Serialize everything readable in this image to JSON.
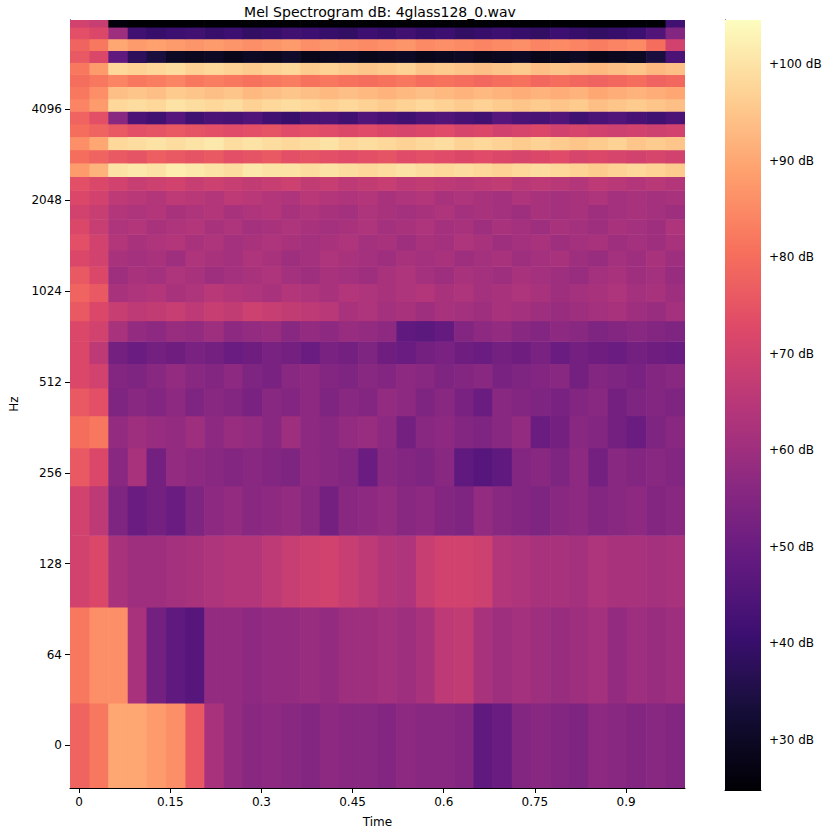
{
  "chart_data": {
    "type": "heatmap",
    "title": "Mel Spectrogram dB: 4glass128_0.wav",
    "x_label": "Time",
    "y_label": "Hz",
    "log": "y",
    "xlim": [
      -0.015,
      0.997
    ],
    "xticks": [
      0,
      0.15,
      0.3,
      0.45,
      0.6,
      0.75,
      0.9
    ],
    "ylim": [
      -30,
      8100
    ],
    "yticks": [
      0,
      64,
      128,
      256,
      512,
      1024,
      2048,
      4096
    ],
    "x_edges": [
      -0.015,
      0.017,
      0.048,
      0.08,
      0.111,
      0.143,
      0.175,
      0.206,
      0.238,
      0.269,
      0.301,
      0.333,
      0.364,
      0.396,
      0.427,
      0.459,
      0.491,
      0.522,
      0.554,
      0.585,
      0.617,
      0.649,
      0.68,
      0.712,
      0.743,
      0.775,
      0.807,
      0.838,
      0.87,
      0.901,
      0.933,
      0.965,
      0.997
    ],
    "y_edges": [
      -30,
      30,
      92,
      159,
      232,
      310,
      396,
      489,
      590,
      699,
      818,
      946,
      1086,
      1238,
      1402,
      1580,
      1773,
      1983,
      2210,
      2457,
      2725,
      3015,
      3330,
      3671,
      4042,
      4444,
      4880,
      5353,
      5866,
      6423,
      7026,
      7681,
      8100
    ],
    "cells": [
      [
        78,
        82,
        90,
        90,
        88,
        86,
        76,
        62,
        58,
        56,
        57,
        56,
        55,
        57,
        56,
        56,
        55,
        57,
        56,
        56,
        55,
        48,
        50,
        55,
        56,
        55,
        54,
        57,
        56,
        55,
        56,
        55
      ],
      [
        82,
        86,
        86,
        62,
        52,
        48,
        46,
        58,
        58,
        57,
        58,
        58,
        59,
        58,
        60,
        60,
        61,
        60,
        62,
        66,
        67,
        62,
        60,
        61,
        60,
        59,
        60,
        61,
        58,
        60,
        59,
        60
      ],
      [
        70,
        72,
        62,
        60,
        60,
        61,
        62,
        63,
        64,
        64,
        66,
        68,
        69,
        70,
        68,
        66,
        64,
        63,
        68,
        70,
        70,
        69,
        64,
        63,
        62,
        62,
        61,
        63,
        62,
        62,
        61,
        62
      ],
      [
        70,
        66,
        54,
        50,
        52,
        50,
        54,
        57,
        58,
        56,
        57,
        58,
        56,
        52,
        56,
        57,
        58,
        56,
        57,
        55,
        54,
        58,
        56,
        55,
        54,
        56,
        57,
        55,
        56,
        57,
        55,
        56
      ],
      [
        76,
        72,
        56,
        62,
        52,
        58,
        57,
        56,
        55,
        56,
        55,
        54,
        57,
        56,
        55,
        50,
        56,
        55,
        54,
        56,
        48,
        46,
        48,
        55,
        56,
        54,
        57,
        52,
        56,
        55,
        56,
        55
      ],
      [
        80,
        82,
        58,
        60,
        59,
        58,
        60,
        57,
        59,
        58,
        56,
        60,
        57,
        56,
        58,
        59,
        57,
        52,
        56,
        57,
        55,
        54,
        56,
        58,
        50,
        52,
        56,
        55,
        52,
        50,
        54,
        56
      ],
      [
        76,
        74,
        54,
        56,
        55,
        57,
        54,
        56,
        55,
        53,
        56,
        55,
        57,
        54,
        56,
        55,
        58,
        57,
        54,
        56,
        53,
        50,
        56,
        55,
        54,
        53,
        55,
        56,
        52,
        54,
        55,
        54
      ],
      [
        72,
        70,
        55,
        54,
        56,
        58,
        56,
        55,
        57,
        54,
        53,
        56,
        57,
        55,
        54,
        56,
        55,
        57,
        56,
        54,
        55,
        56,
        53,
        54,
        55,
        56,
        52,
        55,
        54,
        53,
        55,
        56
      ],
      [
        72,
        66,
        52,
        50,
        52,
        51,
        53,
        52,
        50,
        51,
        53,
        52,
        50,
        53,
        52,
        54,
        51,
        50,
        52,
        53,
        51,
        50,
        52,
        51,
        53,
        50,
        52,
        51,
        50,
        52,
        51,
        50
      ],
      [
        72,
        70,
        62,
        58,
        57,
        59,
        58,
        60,
        57,
        58,
        59,
        56,
        58,
        57,
        59,
        58,
        57,
        48,
        47,
        49,
        55,
        57,
        58,
        56,
        55,
        57,
        56,
        54,
        55,
        56,
        55,
        54
      ],
      [
        76,
        72,
        68,
        66,
        67,
        68,
        66,
        68,
        67,
        69,
        68,
        67,
        66,
        65,
        62,
        63,
        61,
        62,
        60,
        62,
        61,
        60,
        62,
        61,
        60,
        59,
        60,
        61,
        62,
        60,
        59,
        61
      ],
      [
        78,
        76,
        62,
        63,
        64,
        62,
        63,
        65,
        64,
        63,
        62,
        64,
        63,
        62,
        64,
        63,
        62,
        63,
        64,
        62,
        63,
        61,
        62,
        63,
        62,
        60,
        61,
        62,
        63,
        61,
        62,
        60
      ],
      [
        76,
        72,
        60,
        62,
        61,
        63,
        62,
        60,
        61,
        62,
        63,
        61,
        60,
        62,
        61,
        60,
        62,
        63,
        61,
        60,
        62,
        61,
        60,
        62,
        61,
        60,
        59,
        61,
        62,
        60,
        61,
        59
      ],
      [
        72,
        70,
        62,
        61,
        62,
        60,
        63,
        62,
        61,
        63,
        62,
        60,
        61,
        63,
        62,
        61,
        60,
        62,
        61,
        62,
        60,
        61,
        62,
        60,
        61,
        62,
        60,
        59,
        61,
        60,
        62,
        60
      ],
      [
        74,
        70,
        64,
        62,
        63,
        64,
        62,
        63,
        61,
        62,
        63,
        62,
        61,
        62,
        63,
        61,
        62,
        60,
        62,
        61,
        63,
        62,
        60,
        61,
        62,
        60,
        61,
        62,
        60,
        61,
        60,
        62
      ],
      [
        72,
        68,
        63,
        64,
        62,
        63,
        64,
        62,
        63,
        61,
        62,
        63,
        62,
        61,
        62,
        63,
        61,
        62,
        63,
        61,
        62,
        60,
        62,
        61,
        60,
        62,
        61,
        60,
        62,
        61,
        60,
        63
      ],
      [
        70,
        68,
        64,
        63,
        64,
        62,
        63,
        64,
        62,
        63,
        64,
        62,
        63,
        62,
        61,
        63,
        62,
        61,
        62,
        63,
        61,
        62,
        61,
        60,
        62,
        61,
        62,
        60,
        61,
        62,
        61,
        60
      ],
      [
        72,
        70,
        66,
        65,
        64,
        66,
        65,
        64,
        66,
        65,
        64,
        63,
        65,
        64,
        63,
        64,
        62,
        63,
        64,
        62,
        63,
        62,
        61,
        63,
        62,
        61,
        62,
        63,
        61,
        62,
        61,
        62
      ],
      [
        74,
        72,
        70,
        68,
        69,
        70,
        68,
        69,
        68,
        67,
        68,
        69,
        67,
        68,
        66,
        67,
        68,
        66,
        67,
        66,
        65,
        66,
        67,
        65,
        66,
        65,
        64,
        66,
        65,
        64,
        65,
        64
      ],
      [
        88,
        92,
        100,
        101,
        100,
        102,
        101,
        100,
        99,
        101,
        100,
        100,
        99,
        100,
        99,
        98,
        99,
        100,
        99,
        98,
        99,
        98,
        97,
        98,
        99,
        98,
        97,
        96,
        97,
        98,
        97,
        96
      ],
      [
        80,
        78,
        76,
        75,
        77,
        76,
        75,
        76,
        74,
        75,
        76,
        74,
        75,
        74,
        73,
        74,
        75,
        73,
        74,
        73,
        72,
        73,
        72,
        71,
        72,
        73,
        71,
        72,
        71,
        70,
        71,
        70
      ],
      [
        86,
        90,
        98,
        99,
        100,
        99,
        100,
        101,
        99,
        100,
        99,
        98,
        99,
        100,
        98,
        99,
        98,
        97,
        98,
        99,
        97,
        98,
        97,
        96,
        97,
        96,
        95,
        96,
        97,
        95,
        96,
        95
      ],
      [
        80,
        78,
        76,
        74,
        75,
        76,
        75,
        74,
        73,
        74,
        75,
        73,
        74,
        73,
        72,
        73,
        72,
        71,
        72,
        73,
        71,
        72,
        70,
        71,
        72,
        70,
        71,
        70,
        69,
        70,
        69,
        70
      ],
      [
        78,
        74,
        56,
        44,
        42,
        46,
        42,
        44,
        43,
        45,
        42,
        40,
        43,
        44,
        42,
        45,
        43,
        42,
        44,
        45,
        43,
        42,
        46,
        44,
        43,
        45,
        42,
        44,
        45,
        43,
        42,
        44
      ],
      [
        84,
        88,
        98,
        99,
        98,
        100,
        99,
        98,
        99,
        97,
        98,
        99,
        98,
        97,
        98,
        97,
        96,
        97,
        98,
        97,
        96,
        97,
        96,
        95,
        96,
        95,
        96,
        94,
        95,
        96,
        95,
        94
      ],
      [
        82,
        86,
        94,
        95,
        94,
        96,
        95,
        94,
        95,
        93,
        94,
        95,
        94,
        93,
        94,
        93,
        92,
        93,
        94,
        93,
        92,
        93,
        92,
        91,
        92,
        91,
        92,
        90,
        91,
        92,
        91,
        90
      ],
      [
        80,
        82,
        84,
        82,
        83,
        84,
        82,
        83,
        82,
        81,
        82,
        83,
        81,
        82,
        81,
        80,
        81,
        82,
        80,
        81,
        80,
        79,
        80,
        81,
        79,
        80,
        79,
        78,
        79,
        80,
        78,
        79
      ],
      [
        82,
        88,
        98,
        97,
        98,
        99,
        97,
        98,
        97,
        96,
        97,
        98,
        96,
        97,
        96,
        95,
        96,
        97,
        95,
        96,
        95,
        94,
        95,
        96,
        94,
        95,
        94,
        93,
        94,
        95,
        93,
        94
      ],
      [
        76,
        72,
        48,
        38,
        34,
        30,
        29,
        30,
        28,
        30,
        29,
        31,
        28,
        29,
        30,
        28,
        29,
        30,
        28,
        29,
        30,
        28,
        29,
        30,
        28,
        29,
        30,
        28,
        29,
        30,
        34,
        44
      ],
      [
        78,
        82,
        90,
        88,
        89,
        88,
        87,
        88,
        87,
        86,
        87,
        88,
        86,
        87,
        86,
        85,
        86,
        87,
        85,
        86,
        85,
        84,
        85,
        86,
        84,
        85,
        84,
        83,
        84,
        85,
        80,
        70
      ],
      [
        74,
        72,
        60,
        42,
        40,
        41,
        42,
        40,
        41,
        39,
        40,
        42,
        41,
        40,
        39,
        41,
        40,
        42,
        40,
        41,
        39,
        40,
        41,
        40,
        39,
        41,
        40,
        39,
        40,
        41,
        45,
        55
      ],
      [
        70,
        68,
        26,
        25,
        25,
        25,
        25,
        25,
        25,
        25,
        25,
        25,
        25,
        25,
        25,
        25,
        25,
        25,
        25,
        25,
        25,
        25,
        25,
        25,
        25,
        25,
        25,
        25,
        25,
        25,
        25,
        42
      ]
    ],
    "colorbar": {
      "range": [
        24.8,
        104.6
      ],
      "ticks": [
        {
          "value": 30,
          "label": "+30 dB"
        },
        {
          "value": 40,
          "label": "+40 dB"
        },
        {
          "value": 50,
          "label": "+50 dB"
        },
        {
          "value": 60,
          "label": "+60 dB"
        },
        {
          "value": 70,
          "label": "+70 dB"
        },
        {
          "value": 80,
          "label": "+80 dB"
        },
        {
          "value": 90,
          "label": "+90 dB"
        },
        {
          "value": 100,
          "label": "+100 dB"
        }
      ]
    }
  }
}
